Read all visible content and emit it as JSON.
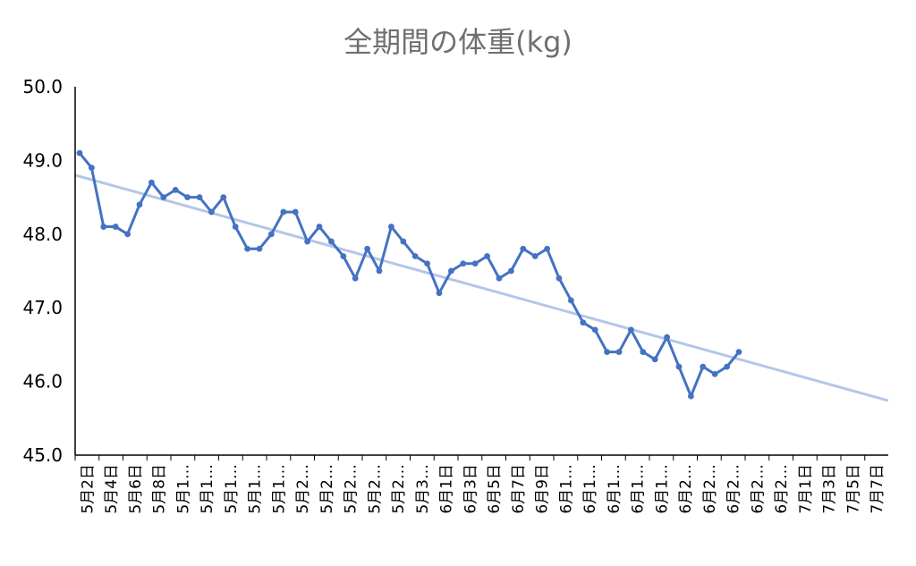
{
  "chart_data": {
    "type": "line",
    "title": "全期間の体重(kg)",
    "xlabel": "",
    "ylabel": "",
    "ylim": [
      45.0,
      50.0
    ],
    "yticks": [
      "50.0",
      "49.0",
      "48.0",
      "47.0",
      "46.0",
      "45.0"
    ],
    "grid": false,
    "legend": "none",
    "x_tick_labels": [
      "5月2日",
      "5月4日",
      "5月6日",
      "5月8日",
      "5月1…",
      "5月1…",
      "5月1…",
      "5月1…",
      "5月1…",
      "5月2…",
      "5月2…",
      "5月2…",
      "5月2…",
      "5月2…",
      "5月3…",
      "6月1日",
      "6月3日",
      "6月5日",
      "6月7日",
      "6月9日",
      "6月1…",
      "6月1…",
      "6月1…",
      "6月1…",
      "6月1…",
      "6月2…",
      "6月2…",
      "6月2…",
      "6月2…",
      "6月2…",
      "7月1日",
      "7月3日",
      "7月5日",
      "7月7日"
    ],
    "series": [
      {
        "values": [
          49.1,
          48.9,
          48.1,
          48.1,
          48.0,
          48.4,
          48.7,
          48.5,
          48.6,
          48.5,
          48.5,
          48.3,
          48.5,
          48.1,
          47.8,
          47.8,
          48.0,
          48.3,
          48.3,
          47.9,
          48.1,
          47.9,
          47.7,
          47.4,
          47.8,
          47.5,
          48.1,
          47.9,
          47.7,
          47.6,
          47.2,
          47.5,
          47.6,
          47.6,
          47.7,
          47.4,
          47.5,
          47.8,
          47.7,
          47.8,
          47.4,
          47.1,
          46.8,
          46.7,
          46.4,
          46.4,
          46.7,
          46.4,
          46.3,
          46.6,
          46.2,
          45.8,
          46.2,
          46.1,
          46.2,
          46.4
        ],
        "color": "#4472c4"
      },
      {
        "trendline": true,
        "values": [
          48.8,
          45.74
        ],
        "color": "#b4c7e7"
      }
    ]
  }
}
